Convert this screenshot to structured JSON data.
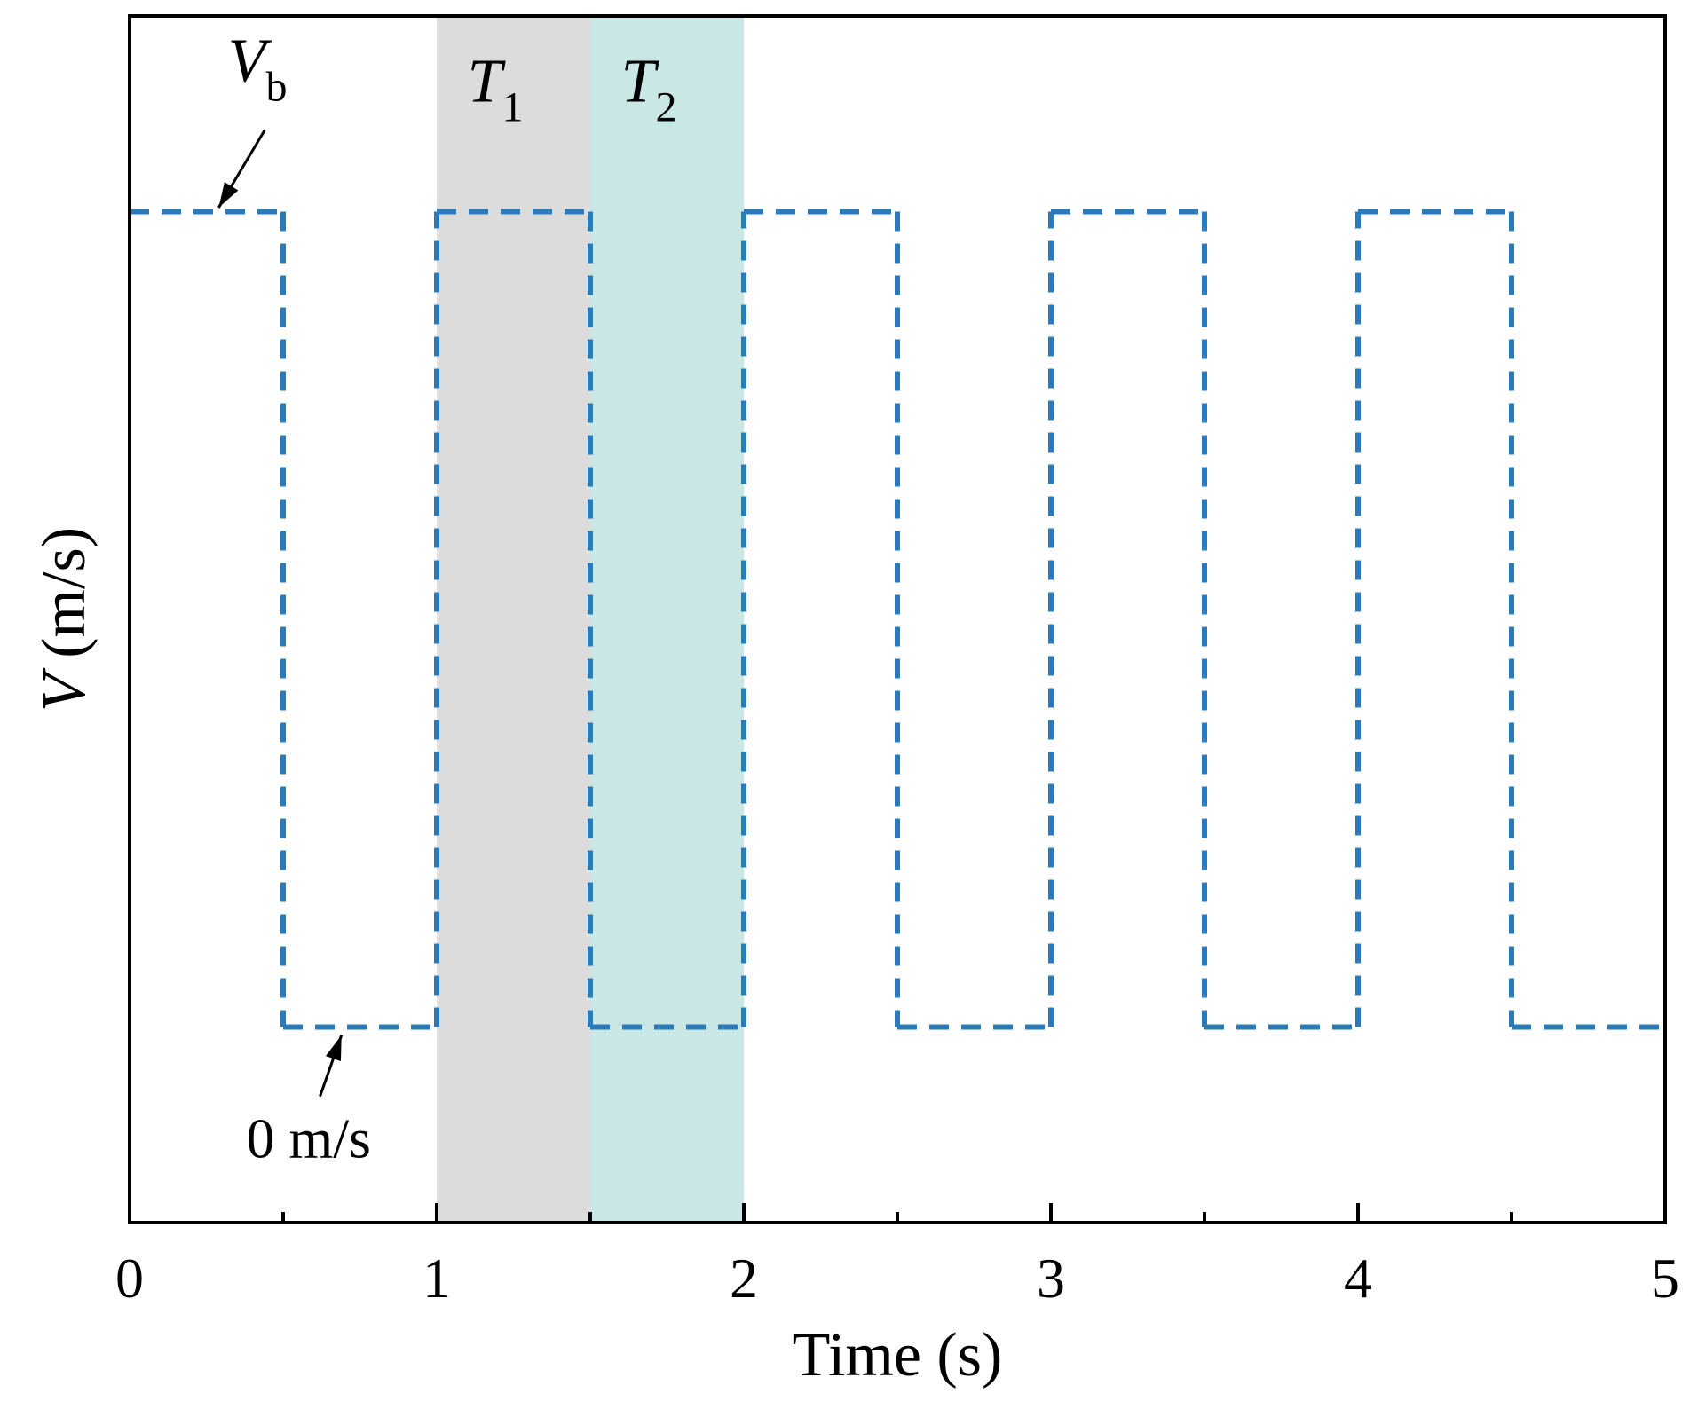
{
  "chart_data": {
    "type": "line",
    "title": "",
    "xlabel": "Time (s)",
    "ylabel_symbol": "V",
    "ylabel_unit": " (m/s)",
    "xlim": [
      0,
      5
    ],
    "ylim": [
      -0.24,
      1.24
    ],
    "xticks_major": [
      "0",
      "1",
      "2",
      "3",
      "4",
      "5"
    ],
    "xticks_minor": [
      0.5,
      1.5,
      2.5,
      3.5,
      4.5
    ],
    "grid": false,
    "series": [
      {
        "style": "dashed",
        "color": "#2b7bba",
        "step": true,
        "x": [
          0,
          0.5,
          0.5,
          1,
          1,
          1.5,
          1.5,
          2,
          2,
          2.5,
          2.5,
          3,
          3,
          3.5,
          3.5,
          4,
          4,
          4.5,
          4.5,
          5
        ],
        "y": [
          1,
          1,
          0,
          0,
          1,
          1,
          0,
          0,
          1,
          1,
          0,
          0,
          1,
          1,
          0,
          0,
          1,
          1,
          0,
          0
        ]
      }
    ],
    "shaded_regions": [
      {
        "x0": 1,
        "x1": 1.5,
        "color": "#dcdcdc",
        "label_symbol": "T",
        "label_sub": "1"
      },
      {
        "x0": 1.5,
        "x1": 2,
        "color": "#c8e7e5",
        "label_symbol": "T",
        "label_sub": "2"
      }
    ],
    "annotations": [
      {
        "symbol": "V",
        "sub": "b",
        "text": ""
      },
      {
        "symbol": "",
        "sub": "",
        "text": "0 m/s"
      }
    ]
  }
}
